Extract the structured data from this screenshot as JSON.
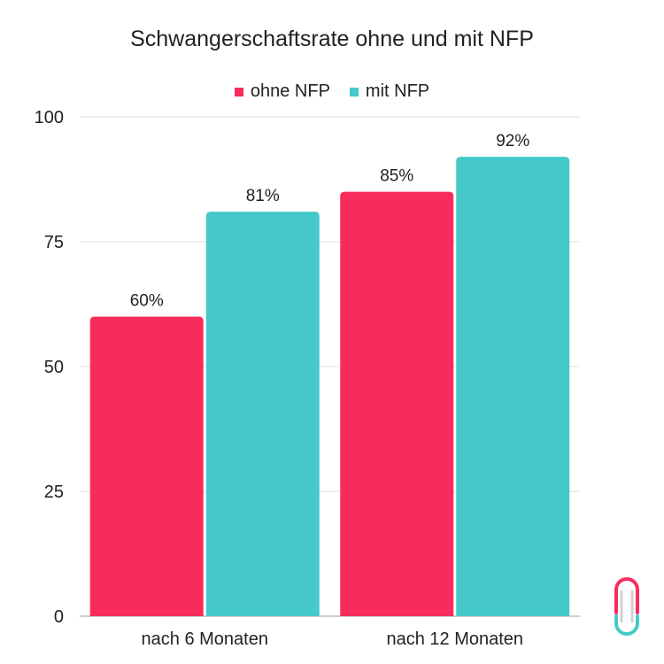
{
  "chart_data": {
    "type": "bar",
    "title": "Schwangerschaftsrate ohne und mit NFP",
    "xlabel": "",
    "ylabel": "",
    "categories": [
      "nach 6 Monaten",
      "nach 12 Monaten"
    ],
    "series": [
      {
        "name": "ohne NFP",
        "color": "#f72c5d",
        "values": [
          60,
          85
        ],
        "labels": [
          "60%",
          "85%"
        ]
      },
      {
        "name": "mit NFP",
        "color": "#45c9c9",
        "values": [
          81,
          92
        ],
        "labels": [
          "81%",
          "92%"
        ]
      }
    ],
    "ylim": [
      0,
      100
    ],
    "yticks": [
      "0",
      "25",
      "50",
      "75",
      "100"
    ],
    "grid": true,
    "legend_position": "top-center"
  },
  "logo": {
    "icon": "paperclip-logo-icon",
    "colors": [
      "#f72c5d",
      "#45c9c9",
      "#c8c8c8"
    ]
  }
}
